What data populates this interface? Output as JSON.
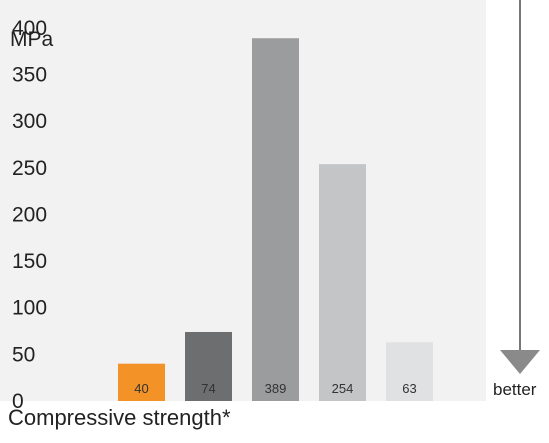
{
  "chart_data": {
    "type": "bar",
    "unit": "MPa",
    "categories": [
      "",
      "",
      "",
      "",
      ""
    ],
    "values": [
      40,
      74,
      389,
      254,
      63
    ],
    "value_labels": [
      "40",
      "74",
      "389",
      "254",
      "63"
    ],
    "bar_colors": [
      "#f39226",
      "#6d6e70",
      "#9b9c9e",
      "#c4c5c7",
      "#e0e1e2"
    ],
    "yticks": [
      0,
      50,
      100,
      150,
      200,
      250,
      300,
      350,
      400
    ],
    "ylim": [
      0,
      430
    ],
    "grid": false,
    "panel_color": "#f2f2f2",
    "arrow_label": "better",
    "caption": "Compressive strength*"
  }
}
